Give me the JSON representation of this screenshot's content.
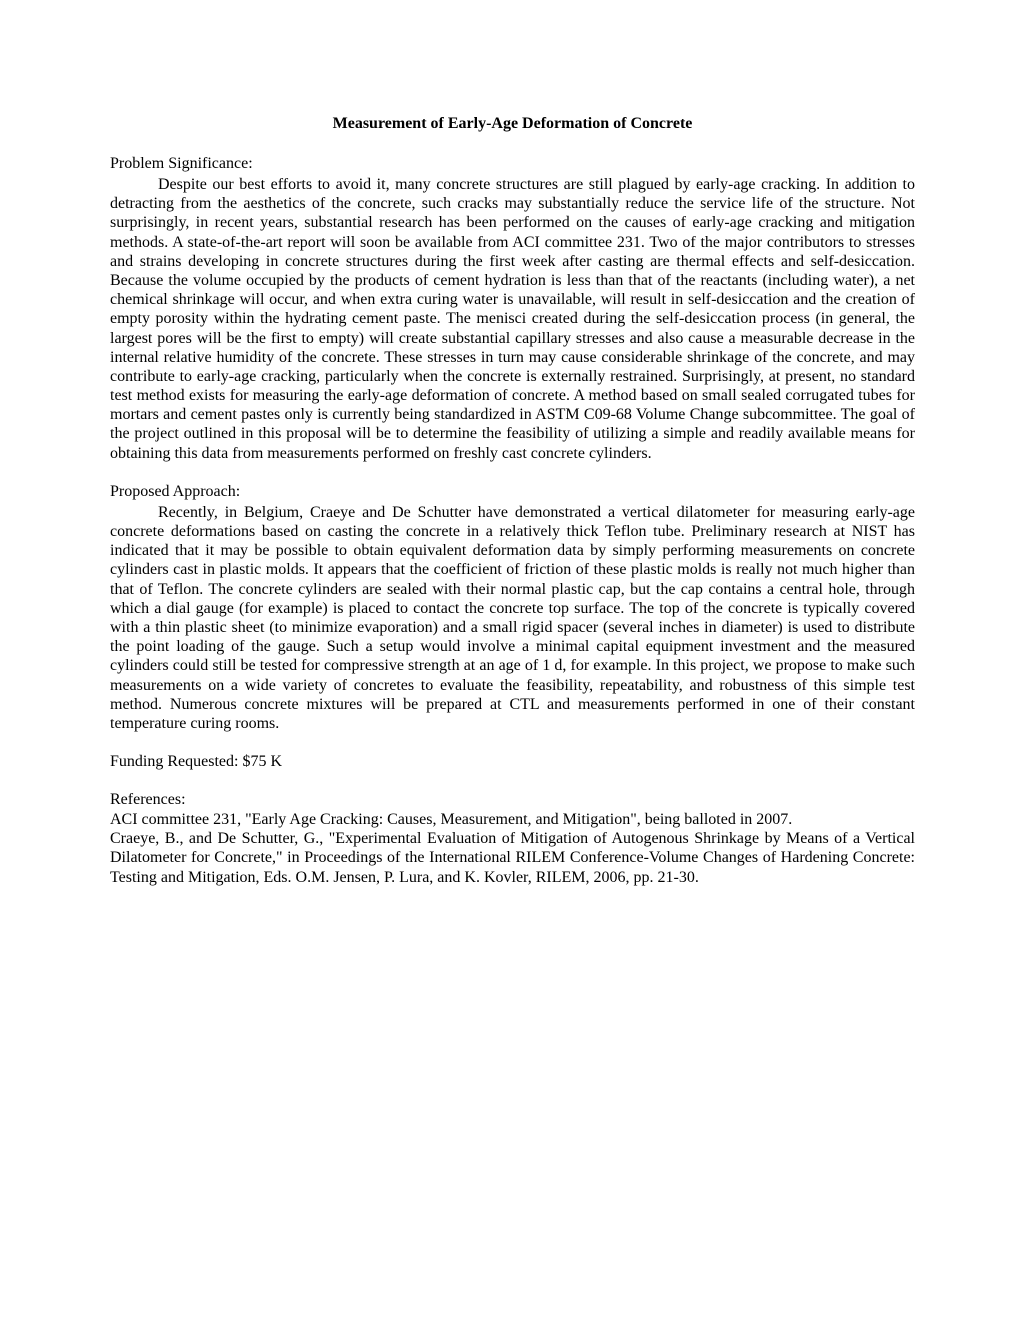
{
  "document": {
    "title": "Measurement of Early-Age Deformation of Concrete",
    "sections": {
      "problem": {
        "heading": "Problem Significance:",
        "body": "Despite our best efforts to avoid it, many concrete structures are still plagued by early-age cracking. In addition to detracting from the aesthetics of the concrete, such cracks may substantially reduce the service life of the structure. Not surprisingly, in recent years, substantial research has been performed on the causes of early-age cracking and mitigation methods. A state-of-the-art report will soon be available from ACI committee 231. Two of the major contributors to stresses and strains developing in concrete structures during the first week after casting are thermal effects and self-desiccation. Because the volume occupied by the products of cement hydration is less than that of the reactants (including water), a net chemical shrinkage will occur, and when extra curing water is unavailable, will result in self-desiccation and the creation of empty porosity within the hydrating cement paste. The menisci created during the self-desiccation process (in general, the largest pores will be the first to empty) will create substantial capillary stresses and also cause a measurable decrease in the internal relative humidity of the concrete. These stresses in turn may cause considerable shrinkage of the concrete, and may contribute to early-age cracking, particularly when the concrete is externally restrained. Surprisingly, at present, no standard test method exists for measuring the early-age deformation of concrete. A method based on small sealed corrugated tubes for mortars and cement pastes only is currently being standardized in ASTM C09-68 Volume Change subcommittee. The goal of the project outlined in this proposal will be to determine the feasibility of utilizing a simple and readily available means for obtaining this data from measurements performed on freshly cast concrete cylinders."
      },
      "approach": {
        "heading": "Proposed Approach:",
        "body": "Recently, in Belgium, Craeye and De Schutter have demonstrated a vertical dilatometer for measuring early-age concrete deformations based on casting the concrete in a relatively thick Teflon tube. Preliminary research at NIST has indicated that it may be possible to obtain equivalent deformation data by simply performing measurements on concrete cylinders cast in plastic molds. It appears that the coefficient of friction of these plastic molds is really not much higher than that of Teflon. The concrete cylinders are sealed with their normal plastic cap, but the cap contains a central hole, through which a dial gauge (for example) is placed to contact the concrete top surface. The top of the concrete is typically covered with a thin plastic sheet (to minimize evaporation) and a small rigid spacer (several inches in diameter) is used to distribute the point loading of the gauge. Such a setup would involve a minimal capital equipment investment and the measured cylinders could still be tested for compressive strength at an age of 1 d, for example. In this project, we propose to make such measurements on a wide variety of concretes to evaluate the feasibility, repeatability, and robustness of this simple test method. Numerous concrete mixtures will be prepared at CTL and measurements performed in one of their constant temperature curing rooms."
      },
      "funding": {
        "text": "Funding Requested: $75 K"
      },
      "references": {
        "heading": "References:",
        "entries": [
          "ACI committee 231, \"Early Age Cracking: Causes, Measurement, and Mitigation\", being balloted in 2007.",
          "Craeye, B., and De Schutter, G., \"Experimental Evaluation of Mitigation of Autogenous Shrinkage by Means of a Vertical Dilatometer for Concrete,\" in Proceedings of the International RILEM Conference-Volume Changes of Hardening Concrete: Testing and Mitigation, Eds. O.M. Jensen, P. Lura, and K. Kovler, RILEM, 2006, pp. 21-30."
        ]
      }
    }
  },
  "style": {
    "background_color": "#ffffff",
    "text_color": "#000000",
    "font_family": "Times New Roman",
    "title_fontsize": 16,
    "body_fontsize": 16,
    "line_height": 1.2
  }
}
